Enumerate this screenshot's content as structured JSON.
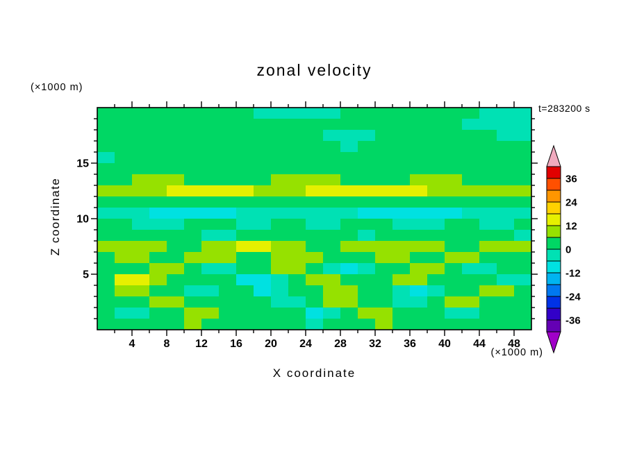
{
  "title": "zonal velocity",
  "time_label": "t=283200 s",
  "x_axis": {
    "label": "X coordinate",
    "units": "(×1000 m)",
    "range": [
      0,
      50
    ],
    "minor_step": 2,
    "tick_labels": [
      4,
      8,
      12,
      16,
      20,
      24,
      28,
      32,
      36,
      40,
      44,
      48
    ]
  },
  "y_axis": {
    "label": "Z coordinate",
    "units": "(×1000 m)",
    "range": [
      0,
      20
    ],
    "minor_step": 1,
    "tick_labels": [
      5,
      10,
      15
    ]
  },
  "colorbar": {
    "labels": [
      36,
      24,
      12,
      0,
      -12,
      -24,
      -36
    ],
    "levels": [
      -42,
      -36,
      -30,
      -24,
      -18,
      -12,
      -6,
      0,
      6,
      12,
      18,
      24,
      30,
      36,
      42
    ],
    "colors": [
      "#6400b4",
      "#3200c8",
      "#0032e6",
      "#0078f0",
      "#00b4f0",
      "#00e1e1",
      "#00e1b4",
      "#00d764",
      "#96e100",
      "#e6f000",
      "#ffd200",
      "#ff9600",
      "#ff5000",
      "#e10000"
    ],
    "over_color": "#f0aabe",
    "under_color": "#a000c8"
  },
  "chart_data": {
    "type": "heatmap",
    "title": "zonal velocity",
    "xlabel": "X coordinate (×1000 m)",
    "ylabel": "Z coordinate (×1000 m)",
    "x_range": [
      0,
      50
    ],
    "z_range": [
      0,
      20
    ],
    "x_centers": [
      1,
      3,
      5,
      7,
      9,
      11,
      13,
      15,
      17,
      19,
      21,
      23,
      25,
      27,
      29,
      31,
      33,
      35,
      37,
      39,
      41,
      43,
      45,
      47,
      49
    ],
    "z_centers": [
      19.5,
      18.5,
      17.5,
      16.5,
      15.5,
      14.5,
      13.5,
      12.5,
      11.5,
      10.5,
      9.5,
      8.5,
      7.5,
      6.5,
      5.5,
      4.5,
      3.5,
      2.5,
      1.5,
      0.5
    ],
    "orientation": "rows ordered top (z=19.5) to bottom (z=0.5)",
    "values": [
      [
        3,
        3,
        3,
        3,
        3,
        3,
        3,
        3,
        3,
        -3,
        -3,
        -3,
        -3,
        -3,
        3,
        3,
        3,
        3,
        3,
        3,
        3,
        3,
        -3,
        -3,
        -3
      ],
      [
        3,
        3,
        3,
        3,
        3,
        3,
        3,
        3,
        3,
        3,
        3,
        3,
        3,
        3,
        3,
        3,
        3,
        3,
        3,
        3,
        3,
        -3,
        -3,
        -3,
        -3
      ],
      [
        3,
        3,
        3,
        3,
        3,
        3,
        3,
        3,
        3,
        3,
        3,
        3,
        3,
        -3,
        -3,
        -3,
        3,
        3,
        3,
        3,
        3,
        3,
        3,
        -3,
        -3
      ],
      [
        3,
        3,
        3,
        3,
        3,
        3,
        3,
        3,
        3,
        3,
        3,
        3,
        3,
        3,
        -3,
        3,
        3,
        3,
        3,
        3,
        3,
        3,
        3,
        3,
        3
      ],
      [
        -3,
        3,
        3,
        3,
        3,
        3,
        3,
        3,
        3,
        3,
        3,
        3,
        3,
        3,
        3,
        3,
        3,
        3,
        3,
        3,
        3,
        3,
        3,
        3,
        3
      ],
      [
        3,
        3,
        3,
        3,
        3,
        3,
        3,
        3,
        3,
        3,
        3,
        3,
        3,
        3,
        3,
        3,
        3,
        3,
        3,
        3,
        3,
        3,
        3,
        3,
        3
      ],
      [
        3,
        3,
        9,
        9,
        9,
        3,
        3,
        3,
        3,
        3,
        9,
        9,
        9,
        9,
        3,
        3,
        3,
        3,
        9,
        9,
        9,
        3,
        3,
        3,
        3
      ],
      [
        9,
        9,
        9,
        9,
        15,
        15,
        15,
        15,
        15,
        9,
        9,
        9,
        15,
        15,
        15,
        15,
        15,
        15,
        15,
        9,
        9,
        9,
        9,
        9,
        9
      ],
      [
        3,
        3,
        3,
        3,
        3,
        3,
        3,
        3,
        3,
        3,
        3,
        3,
        3,
        3,
        3,
        3,
        3,
        3,
        3,
        3,
        3,
        3,
        3,
        3,
        3
      ],
      [
        -3,
        -3,
        -3,
        -9,
        -9,
        -9,
        -9,
        -9,
        -3,
        -3,
        -3,
        -3,
        -3,
        -3,
        -3,
        -9,
        -9,
        -9,
        -9,
        -9,
        -9,
        -3,
        -3,
        -3,
        -3
      ],
      [
        3,
        3,
        -3,
        -3,
        -3,
        3,
        3,
        3,
        -3,
        -3,
        3,
        3,
        -3,
        -3,
        3,
        3,
        3,
        -3,
        -3,
        -3,
        3,
        3,
        -3,
        -3,
        3
      ],
      [
        3,
        3,
        3,
        3,
        3,
        3,
        -3,
        -3,
        3,
        3,
        3,
        3,
        3,
        3,
        3,
        -3,
        3,
        3,
        3,
        3,
        3,
        3,
        3,
        3,
        -3
      ],
      [
        9,
        9,
        9,
        9,
        3,
        3,
        9,
        9,
        15,
        15,
        9,
        9,
        3,
        3,
        9,
        9,
        9,
        9,
        9,
        9,
        3,
        3,
        9,
        9,
        9
      ],
      [
        3,
        9,
        9,
        3,
        3,
        9,
        9,
        9,
        3,
        3,
        9,
        9,
        9,
        3,
        3,
        3,
        9,
        9,
        3,
        3,
        9,
        9,
        3,
        3,
        3
      ],
      [
        3,
        3,
        3,
        9,
        9,
        3,
        -3,
        -3,
        3,
        3,
        9,
        9,
        3,
        -3,
        -9,
        -3,
        3,
        3,
        9,
        9,
        3,
        -3,
        -3,
        3,
        3
      ],
      [
        3,
        15,
        15,
        9,
        3,
        3,
        3,
        3,
        -9,
        -9,
        -3,
        3,
        9,
        9,
        3,
        3,
        3,
        9,
        9,
        3,
        3,
        3,
        3,
        -3,
        -3
      ],
      [
        3,
        9,
        9,
        3,
        3,
        -3,
        -3,
        3,
        3,
        -9,
        -3,
        3,
        3,
        9,
        9,
        3,
        3,
        -3,
        -9,
        -3,
        3,
        3,
        9,
        9,
        3
      ],
      [
        3,
        3,
        3,
        9,
        9,
        3,
        3,
        3,
        3,
        3,
        -3,
        -3,
        3,
        9,
        9,
        3,
        3,
        -3,
        -3,
        3,
        9,
        9,
        3,
        3,
        3
      ],
      [
        3,
        -3,
        -3,
        3,
        3,
        9,
        9,
        3,
        3,
        3,
        3,
        3,
        -9,
        -3,
        3,
        9,
        9,
        3,
        3,
        3,
        -3,
        -3,
        3,
        3,
        3
      ],
      [
        3,
        3,
        3,
        3,
        3,
        9,
        3,
        3,
        3,
        3,
        3,
        3,
        -3,
        3,
        3,
        3,
        9,
        3,
        3,
        3,
        3,
        3,
        3,
        3,
        3
      ]
    ]
  }
}
